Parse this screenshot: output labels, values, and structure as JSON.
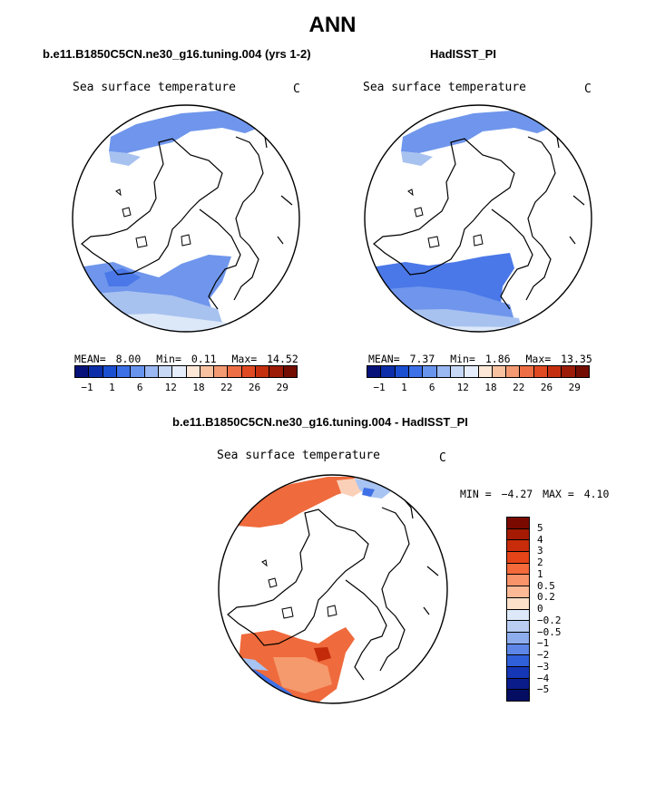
{
  "title": "ANN",
  "panels": [
    {
      "case_title": "b.e11.B1850C5CN.ne30_g16.tuning.004 (yrs 1-2)",
      "variable_label": "Sea surface temperature",
      "units": "C",
      "mean_label": "MEAN=",
      "mean_value": "8.00",
      "min_label": "Min=",
      "min_value": "0.11",
      "max_label": "Max=",
      "max_value": "14.52"
    },
    {
      "case_title": "HadISST_PI",
      "variable_label": "Sea surface temperature",
      "units": "C",
      "mean_label": "MEAN=",
      "mean_value": "7.37",
      "min_label": "Min=",
      "min_value": "1.86",
      "max_label": "Max=",
      "max_value": "13.35"
    }
  ],
  "horizontal_colorbar": {
    "tick_labels": [
      "−1",
      "1",
      "6",
      "12",
      "18",
      "22",
      "26",
      "29"
    ],
    "colors": [
      "#06127a",
      "#0c2ea8",
      "#1b4fd1",
      "#3b70e6",
      "#6894ee",
      "#9ab8f2",
      "#c6d8f6",
      "#e6eefb",
      "#fde7d6",
      "#f8c1a0",
      "#f39a73",
      "#ee6f45",
      "#e04a22",
      "#c4300f",
      "#9c1c08",
      "#730d02"
    ]
  },
  "diff_panel": {
    "case_title": "b.e11.B1850C5CN.ne30_g16.tuning.004 - HadISST_PI",
    "variable_label": "Sea surface temperature",
    "units": "C",
    "min_label": "MIN =",
    "min_value": "−4.27",
    "max_label": "MAX =",
    "max_value": "4.10"
  },
  "vertical_colorbar": {
    "labels": [
      "5",
      "4",
      "3",
      "2",
      "1",
      "0.5",
      "0.2",
      "0",
      "−0.2",
      "−0.5",
      "−1",
      "−2",
      "−3",
      "−4",
      "−5"
    ],
    "colors": [
      "#7a0a00",
      "#a41a03",
      "#c82c0a",
      "#e54418",
      "#f46a3b",
      "#f8936a",
      "#fbb995",
      "#fde0ca",
      "#dde8f8",
      "#b9cdf2",
      "#8eaded",
      "#5d86e6",
      "#2f5fd9",
      "#1537b5",
      "#0a1b8a",
      "#050d62"
    ]
  },
  "map_colors": {
    "sst_light": "#dce8f8",
    "sst_mid": "#a8c2f0",
    "sst_blue": "#6f96ec",
    "sst_deep": "#4a78e8",
    "diff_red": "#ef6a3c",
    "diff_orange": "#f59a6d",
    "diff_pale": "#fbd0b8",
    "diff_darkred": "#c22a0a",
    "diff_blue": "#3f70e6",
    "diff_darkblue": "#1b3fc4",
    "diff_lightblue": "#a8c4f2"
  }
}
